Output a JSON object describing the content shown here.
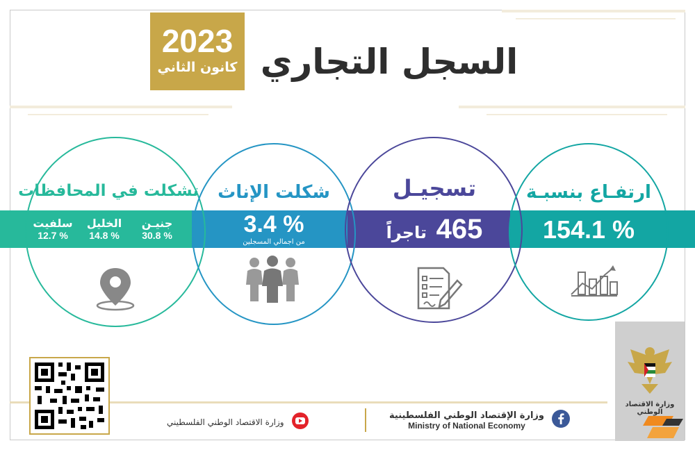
{
  "header": {
    "year": "2023",
    "month": "كانون الثاني",
    "title": "السجل التجاري"
  },
  "stats": {
    "increase": {
      "heading": "ارتفـاع بنسبـة",
      "value": "154.1 %"
    },
    "registration": {
      "heading": "تسجيـل",
      "value": "465",
      "unit": "تاجراً"
    },
    "females": {
      "heading": "شكلت الإناث",
      "value": "3.4 %",
      "note": "من اجمالي المسجلين"
    },
    "governorates": {
      "heading": "تشكلت في المحافظات",
      "items": [
        {
          "name": "جنيـن",
          "value": "30.8 %"
        },
        {
          "name": "الخليل",
          "value": "14.8 %"
        },
        {
          "name": "سلفيت",
          "value": "12.7 %"
        }
      ]
    }
  },
  "footer": {
    "ministry_ar": "وزارة الإقتصاد الوطني الفلسطينية",
    "ministry_en": "Ministry of National Economy",
    "youtube_label": "وزارة الاقتصاد الوطني الفلسطيني",
    "emblem_caption": "وزارة الاقتصاد الوطني"
  },
  "colors": {
    "gold": "#c8a749",
    "teal": "#13a6a3",
    "blue": "#2595c4",
    "navy": "#4b479a",
    "green": "#27b99b"
  },
  "icons": [
    "growth-chart-icon",
    "document-pen-icon",
    "women-group-icon",
    "location-pin-icon",
    "qr-code-icon",
    "youtube-icon",
    "facebook-icon",
    "palestine-eagle-emblem"
  ]
}
